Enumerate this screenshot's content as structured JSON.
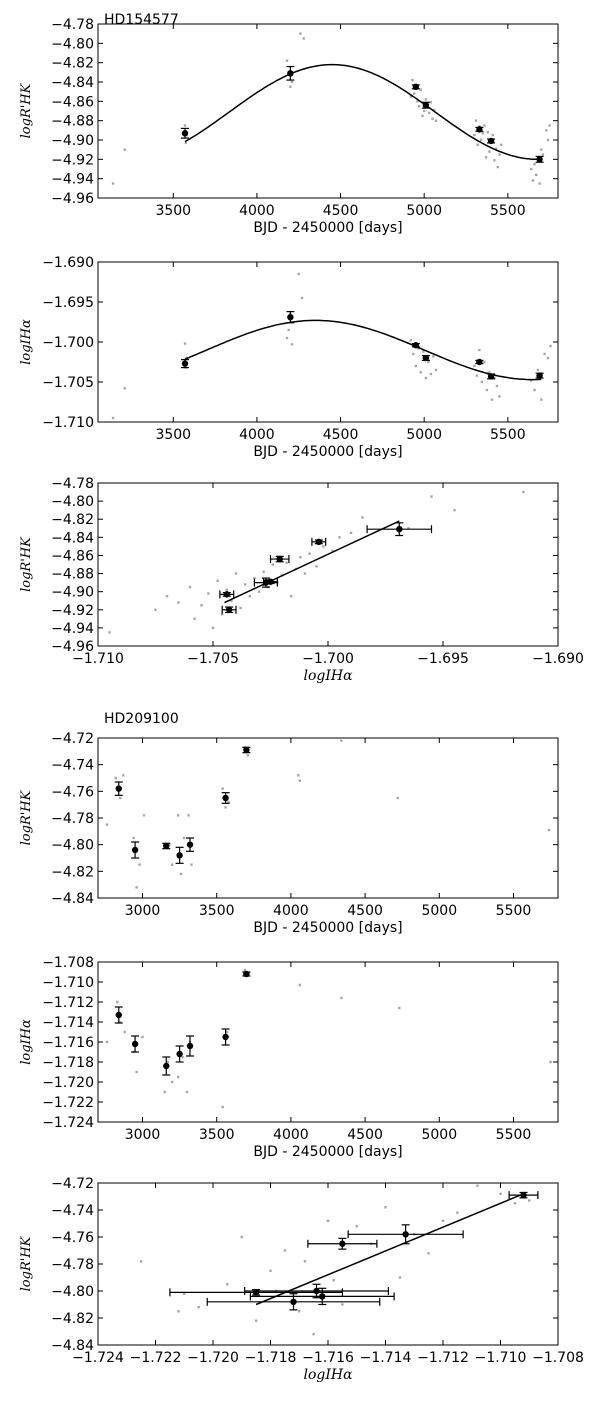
{
  "stars": [
    {
      "name": "HD154577"
    },
    {
      "name": "HD209100"
    }
  ],
  "chart_data": [
    {
      "type": "scatter",
      "star": "HD154577",
      "xlabel": "BJD - 2450000 [days]",
      "ylabel": "logR'HK",
      "xlim": [
        3050,
        5800
      ],
      "ylim": [
        -4.96,
        -4.78
      ],
      "xticks": [
        3500,
        4000,
        4500,
        5000,
        5500
      ],
      "yticks": [
        -4.96,
        -4.94,
        -4.92,
        -4.9,
        -4.88,
        -4.86,
        -4.84,
        -4.82,
        -4.8,
        -4.78
      ],
      "tick_decimals": [
        0,
        2
      ],
      "binned": {
        "x": [
          3570,
          4200,
          4950,
          5010,
          5330,
          5400,
          5690
        ],
        "y": [
          -4.893,
          -4.831,
          -4.845,
          -4.864,
          -4.889,
          -4.901,
          -4.92
        ],
        "yerr": [
          0.005,
          0.007,
          0.002,
          0.003,
          0.002,
          0.002,
          0.003
        ]
      },
      "fit": {
        "kind": "sine",
        "x_range": [
          3570,
          5700
        ],
        "mean": -4.871,
        "amp": 0.049,
        "period": 2460,
        "peak_x": 4450
      },
      "raw": {
        "x": [
          3140,
          3210,
          3570,
          3575,
          3580,
          4180,
          4190,
          4200,
          4210,
          4260,
          4280,
          4920,
          4930,
          4940,
          4950,
          4960,
          4970,
          4980,
          4990,
          5000,
          5010,
          5020,
          5030,
          5040,
          5050,
          5060,
          5070,
          5300,
          5310,
          5320,
          5330,
          5340,
          5350,
          5360,
          5370,
          5380,
          5390,
          5400,
          5410,
          5420,
          5430,
          5440,
          5450,
          5460,
          5640,
          5650,
          5660,
          5670,
          5680,
          5690,
          5700,
          5710,
          5730,
          5740,
          5750
        ],
        "y": [
          -4.945,
          -4.91,
          -4.885,
          -4.903,
          -4.895,
          -4.818,
          -4.83,
          -4.845,
          -4.84,
          -4.79,
          -4.795,
          -4.855,
          -4.838,
          -4.852,
          -4.843,
          -4.86,
          -4.865,
          -4.848,
          -4.875,
          -4.87,
          -4.858,
          -4.866,
          -4.872,
          -4.861,
          -4.878,
          -4.869,
          -4.88,
          -4.895,
          -4.88,
          -4.905,
          -4.886,
          -4.9,
          -4.893,
          -4.885,
          -4.918,
          -4.892,
          -4.912,
          -4.903,
          -4.895,
          -4.921,
          -4.909,
          -4.928,
          -4.915,
          -4.905,
          -4.93,
          -4.942,
          -4.925,
          -4.936,
          -4.918,
          -4.945,
          -4.91,
          -4.915,
          -4.89,
          -4.9,
          -4.885
        ]
      }
    },
    {
      "type": "scatter",
      "star": "HD154577",
      "xlabel": "BJD - 2450000 [days]",
      "ylabel": "logIHα",
      "xlim": [
        3050,
        5800
      ],
      "ylim": [
        -1.71,
        -1.69
      ],
      "xticks": [
        3500,
        4000,
        4500,
        5000,
        5500
      ],
      "yticks": [
        -1.71,
        -1.705,
        -1.7,
        -1.695,
        -1.69
      ],
      "tick_decimals": [
        0,
        3
      ],
      "binned": {
        "x": [
          3570,
          4200,
          4950,
          5010,
          5330,
          5400,
          5690
        ],
        "y": [
          -1.7027,
          -1.6969,
          -1.7004,
          -1.702,
          -1.7025,
          -1.7043,
          -1.7042
        ],
        "yerr": [
          0.0005,
          0.0007,
          0.0002,
          0.0003,
          0.0002,
          0.0003,
          0.0003
        ]
      },
      "fit": {
        "kind": "sine",
        "x_range": [
          3570,
          5700
        ],
        "mean": -1.701,
        "amp": 0.0037,
        "period": 2600,
        "peak_x": 4350
      },
      "raw": {
        "x": [
          3140,
          3210,
          3570,
          3575,
          3580,
          4180,
          4190,
          4200,
          4210,
          4250,
          4270,
          4920,
          4935,
          4950,
          4965,
          4980,
          4995,
          5010,
          5025,
          5040,
          5055,
          5070,
          5300,
          5315,
          5330,
          5345,
          5360,
          5375,
          5390,
          5405,
          5420,
          5435,
          5450,
          5640,
          5660,
          5680,
          5700,
          5720,
          5740,
          5755
        ],
        "y": [
          -1.7095,
          -1.7058,
          -1.7002,
          -1.7032,
          -1.702,
          -1.6995,
          -1.6985,
          -1.6965,
          -1.7003,
          -1.6915,
          -1.6945,
          -1.6998,
          -1.7015,
          -1.703,
          -1.7008,
          -1.7038,
          -1.7012,
          -1.7045,
          -1.7025,
          -1.704,
          -1.7018,
          -1.7035,
          -1.703,
          -1.7042,
          -1.701,
          -1.705,
          -1.7025,
          -1.706,
          -1.7038,
          -1.7072,
          -1.7045,
          -1.7055,
          -1.7068,
          -1.7048,
          -1.706,
          -1.7035,
          -1.7072,
          -1.7015,
          -1.702,
          -1.7005
        ]
      }
    },
    {
      "type": "scatter",
      "star": "HD154577",
      "xlabel": "logIHα",
      "ylabel": "logR'HK",
      "xlim": [
        -1.71,
        -1.69
      ],
      "ylim": [
        -4.96,
        -4.78
      ],
      "xticks": [
        -1.71,
        -1.705,
        -1.7,
        -1.695,
        -1.69
      ],
      "yticks": [
        -4.96,
        -4.94,
        -4.92,
        -4.9,
        -4.88,
        -4.86,
        -4.84,
        -4.82,
        -4.8,
        -4.78
      ],
      "tick_decimals": [
        3,
        2
      ],
      "binned": {
        "x": [
          -1.7044,
          -1.7043,
          -1.7027,
          -1.7025,
          -1.7021,
          -1.7004,
          -1.6969
        ],
        "y": [
          -4.903,
          -4.92,
          -4.89,
          -4.889,
          -4.864,
          -4.845,
          -4.831
        ],
        "xerr": [
          0.0003,
          0.0003,
          0.0005,
          0.0003,
          0.0004,
          0.0003,
          0.0014
        ],
        "yerr": [
          0.002,
          0.003,
          0.005,
          0.002,
          0.003,
          0.002,
          0.007
        ]
      },
      "fit": {
        "kind": "line",
        "x_range": [
          -1.7045,
          -1.6969
        ],
        "y_range": [
          -4.912,
          -4.822
        ]
      },
      "raw": {
        "x": [
          -1.7095,
          -1.7075,
          -1.707,
          -1.7065,
          -1.706,
          -1.7058,
          -1.7055,
          -1.7052,
          -1.705,
          -1.7048,
          -1.7046,
          -1.7044,
          -1.7042,
          -1.704,
          -1.7038,
          -1.7036,
          -1.7034,
          -1.7032,
          -1.703,
          -1.7028,
          -1.7026,
          -1.7024,
          -1.7022,
          -1.702,
          -1.7018,
          -1.7016,
          -1.7014,
          -1.7012,
          -1.701,
          -1.7008,
          -1.7005,
          -1.7002,
          -1.6998,
          -1.6995,
          -1.699,
          -1.6985,
          -1.6965,
          -1.6955,
          -1.6945,
          -1.6915
        ],
        "y": [
          -4.945,
          -4.92,
          -4.905,
          -4.912,
          -4.895,
          -4.93,
          -4.915,
          -4.902,
          -4.94,
          -4.888,
          -4.925,
          -4.898,
          -4.91,
          -4.88,
          -4.918,
          -4.892,
          -4.905,
          -4.885,
          -4.9,
          -4.878,
          -4.895,
          -4.87,
          -4.89,
          -4.882,
          -4.868,
          -4.905,
          -4.875,
          -4.862,
          -4.88,
          -4.858,
          -4.872,
          -4.85,
          -4.855,
          -4.84,
          -4.835,
          -4.818,
          -4.83,
          -4.795,
          -4.81,
          -4.79
        ]
      }
    },
    {
      "type": "scatter",
      "star": "HD209100",
      "xlabel": "BJD - 2450000 [days]",
      "ylabel": "logR'HK",
      "xlim": [
        2700,
        5800
      ],
      "ylim": [
        -4.84,
        -4.72
      ],
      "xticks": [
        3000,
        3500,
        4000,
        4500,
        5000,
        5500
      ],
      "yticks": [
        -4.84,
        -4.82,
        -4.8,
        -4.78,
        -4.76,
        -4.74,
        -4.72
      ],
      "tick_decimals": [
        0,
        2
      ],
      "binned": {
        "x": [
          2840,
          2950,
          3160,
          3250,
          3320,
          3560,
          3700
        ],
        "y": [
          -4.758,
          -4.804,
          -4.801,
          -4.808,
          -4.8,
          -4.765,
          -4.729
        ],
        "yerr": [
          0.005,
          0.006,
          0.002,
          0.006,
          0.005,
          0.004,
          0.002
        ]
      },
      "raw": {
        "x": [
          2760,
          2820,
          2850,
          2870,
          2940,
          2960,
          2980,
          3010,
          3150,
          3180,
          3200,
          3240,
          3260,
          3280,
          3310,
          3330,
          3540,
          3560,
          3580,
          3690,
          3710,
          4050,
          4060,
          4340,
          4720,
          5740
        ],
        "y": [
          -4.785,
          -4.75,
          -4.765,
          -4.748,
          -4.795,
          -4.832,
          -4.815,
          -4.778,
          -4.802,
          -4.8,
          -4.815,
          -4.778,
          -4.822,
          -4.795,
          -4.778,
          -4.815,
          -4.758,
          -4.772,
          -4.768,
          -4.727,
          -4.733,
          -4.748,
          -4.752,
          -4.722,
          -4.765,
          -4.789
        ]
      }
    },
    {
      "type": "scatter",
      "star": "HD209100",
      "xlabel": "BJD - 2450000 [days]",
      "ylabel": "logIHα",
      "xlim": [
        2700,
        5800
      ],
      "ylim": [
        -1.724,
        -1.708
      ],
      "xticks": [
        3000,
        3500,
        4000,
        4500,
        5000,
        5500
      ],
      "yticks": [
        -1.724,
        -1.722,
        -1.72,
        -1.718,
        -1.716,
        -1.714,
        -1.712,
        -1.71,
        -1.708
      ],
      "tick_decimals": [
        0,
        3
      ],
      "binned": {
        "x": [
          2840,
          2950,
          3160,
          3250,
          3320,
          3560,
          3700
        ],
        "y": [
          -1.7133,
          -1.7162,
          -1.7184,
          -1.7172,
          -1.7164,
          -1.7155,
          -1.7092
        ],
        "yerr": [
          0.0008,
          0.0008,
          0.0009,
          0.0008,
          0.001,
          0.0008,
          0.0002
        ]
      },
      "raw": {
        "x": [
          2760,
          2830,
          2850,
          2880,
          2940,
          2960,
          3000,
          3150,
          3170,
          3200,
          3240,
          3270,
          3300,
          3320,
          3540,
          3570,
          3690,
          4060,
          4340,
          4730,
          5750
        ],
        "y": [
          -1.716,
          -1.712,
          -1.714,
          -1.715,
          -1.717,
          -1.719,
          -1.7155,
          -1.721,
          -1.718,
          -1.72,
          -1.7195,
          -1.7175,
          -1.721,
          -1.716,
          -1.7225,
          -1.715,
          -1.7088,
          -1.7103,
          -1.7116,
          -1.7126,
          -1.718
        ]
      }
    },
    {
      "type": "scatter",
      "star": "HD209100",
      "xlabel": "logIHα",
      "ylabel": "logR'HK",
      "xlim": [
        -1.724,
        -1.708
      ],
      "ylim": [
        -4.84,
        -4.72
      ],
      "xticks": [
        -1.724,
        -1.722,
        -1.72,
        -1.718,
        -1.716,
        -1.714,
        -1.712,
        -1.71,
        -1.708
      ],
      "yticks": [
        -4.84,
        -4.82,
        -4.8,
        -4.78,
        -4.76,
        -4.74,
        -4.72
      ],
      "tick_decimals": [
        3,
        2
      ],
      "binned": {
        "x": [
          -1.7185,
          -1.7172,
          -1.7164,
          -1.7162,
          -1.7155,
          -1.7133,
          -1.7092
        ],
        "y": [
          -4.801,
          -4.808,
          -4.8,
          -4.804,
          -4.765,
          -4.758,
          -4.729
        ],
        "xerr": [
          0.003,
          0.003,
          0.0025,
          0.0025,
          0.0012,
          0.002,
          0.0005
        ],
        "yerr": [
          0.002,
          0.006,
          0.005,
          0.006,
          0.004,
          0.007,
          0.002
        ]
      },
      "fit": {
        "kind": "line",
        "x_range": [
          -1.7185,
          -1.7092
        ],
        "y_range": [
          -4.81,
          -4.728
        ]
      },
      "raw": {
        "x": [
          -1.7225,
          -1.7212,
          -1.721,
          -1.7205,
          -1.7195,
          -1.719,
          -1.7185,
          -1.718,
          -1.7178,
          -1.7175,
          -1.717,
          -1.7168,
          -1.7165,
          -1.716,
          -1.7158,
          -1.7155,
          -1.715,
          -1.7145,
          -1.714,
          -1.7135,
          -1.713,
          -1.7125,
          -1.712,
          -1.7115,
          -1.7108,
          -1.71,
          -1.7095,
          -1.709
        ],
        "y": [
          -4.778,
          -4.815,
          -4.802,
          -4.812,
          -4.795,
          -4.76,
          -4.822,
          -4.785,
          -4.8,
          -4.77,
          -4.815,
          -4.778,
          -4.832,
          -4.748,
          -4.792,
          -4.81,
          -4.752,
          -4.765,
          -4.738,
          -4.79,
          -4.758,
          -4.772,
          -4.748,
          -4.742,
          -4.722,
          -4.728,
          -4.735,
          -4.733
        ]
      }
    }
  ]
}
